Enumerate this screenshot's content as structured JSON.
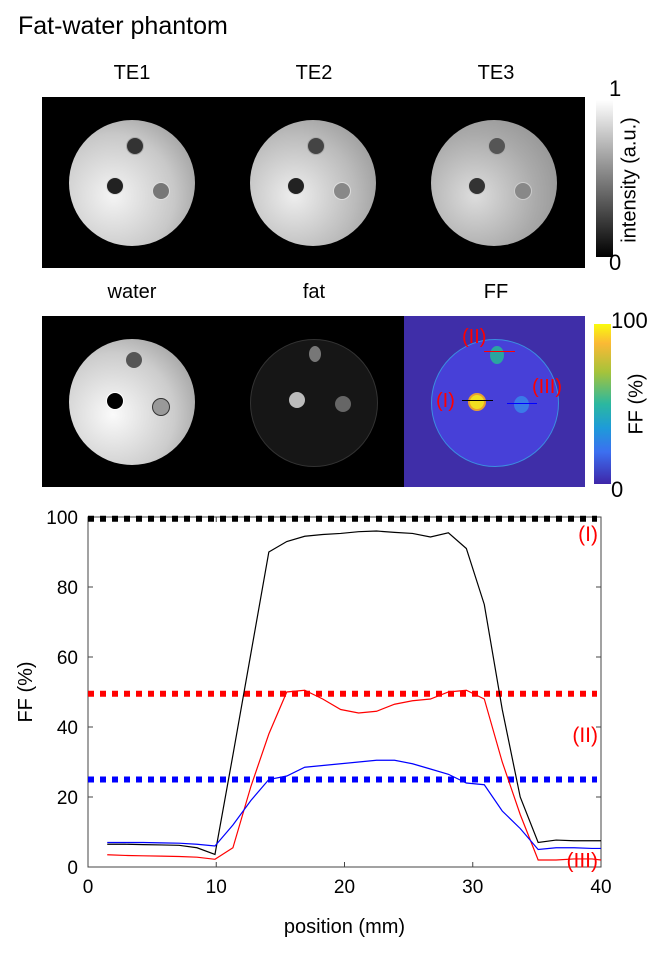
{
  "title": "Fat-water phantom",
  "row1": {
    "labels": [
      "TE1",
      "TE2",
      "TE3"
    ],
    "colorbar": {
      "max": "1",
      "min": "0",
      "label": "intensity (a.u.)",
      "colormap": "gray"
    }
  },
  "row2": {
    "labels": [
      "water",
      "fat",
      "FF"
    ],
    "colorbar": {
      "max": "100",
      "min": "0",
      "label": "FF (%)",
      "colormap": "parula"
    },
    "roi_labels": [
      "(I)",
      "(II)",
      "(III)"
    ]
  },
  "chart_data": {
    "type": "line",
    "xlabel": "position (mm)",
    "ylabel": "FF (%)",
    "xlim": [
      0,
      40
    ],
    "ylim": [
      0,
      100
    ],
    "xticks": [
      0,
      10,
      20,
      30,
      40
    ],
    "yticks": [
      0,
      20,
      40,
      60,
      80,
      100
    ],
    "grid": false,
    "x": [
      1.5,
      2.9,
      4.3,
      5.7,
      7.1,
      8.5,
      9.9,
      11.3,
      12.7,
      14.1,
      15.5,
      16.9,
      18.3,
      19.7,
      21.1,
      22.5,
      23.9,
      25.3,
      26.7,
      28.1,
      29.5,
      30.9,
      32.3,
      33.7,
      35.1,
      36.5,
      37.9,
      39.3,
      40.0
    ],
    "series": [
      {
        "color": "#000000",
        "values": [
          6.5,
          6.5,
          6.4,
          6.3,
          6.2,
          5.5,
          3.6,
          32,
          61,
          90,
          93,
          94.5,
          95,
          95.3,
          95.8,
          96,
          95.6,
          95.3,
          94.3,
          95.5,
          91,
          75,
          45,
          20,
          7,
          7.7,
          7.5,
          7.5,
          7.5
        ]
      },
      {
        "color": "#ff0000",
        "values": [
          3.5,
          3.3,
          3.2,
          3.1,
          3.0,
          2.8,
          2.2,
          5.5,
          23,
          38,
          50,
          50.5,
          48,
          45,
          44,
          44.5,
          46.5,
          47.5,
          48,
          50,
          50.5,
          48,
          30,
          15,
          2,
          2,
          2.3,
          2.3,
          2
        ]
      },
      {
        "color": "#0000ff",
        "values": [
          7,
          7,
          7,
          6.9,
          6.8,
          6.5,
          6,
          12,
          19,
          25,
          26,
          28.5,
          29,
          29.5,
          30,
          30.5,
          30.5,
          29.5,
          28,
          26.5,
          24,
          23.5,
          16,
          11,
          5,
          5.5,
          5.5,
          5.3,
          5.3
        ]
      }
    ],
    "reference_lines": [
      {
        "label": "(I)",
        "value": 99.5,
        "color": "#000000",
        "style": "dotted"
      },
      {
        "label": "(II)",
        "value": 49.5,
        "color": "#ff0000",
        "style": "dotted"
      },
      {
        "label": "(III)",
        "value": 25,
        "color": "#0000ff",
        "style": "dotted"
      }
    ]
  }
}
